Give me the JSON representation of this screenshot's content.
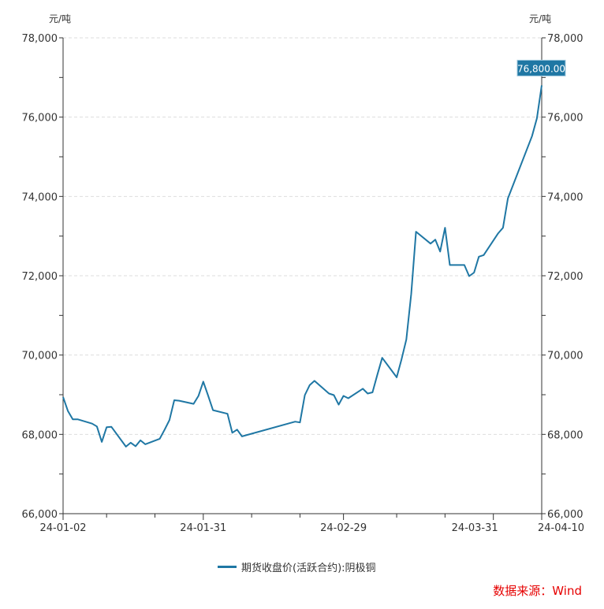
{
  "chart_data": {
    "type": "line",
    "left_unit": "元/吨",
    "right_unit": "元/吨",
    "ylim": [
      66000,
      78000
    ],
    "yticks": [
      "66,000",
      "68,000",
      "70,000",
      "72,000",
      "74,000",
      "76,000",
      "78,000"
    ],
    "yticks_values": [
      66000,
      68000,
      70000,
      72000,
      74000,
      76000,
      78000
    ],
    "xlim": [
      "2024-01-02",
      "2024-04-10"
    ],
    "xtick_labels": [
      {
        "date": "2024-01-02",
        "label": "24-01-02"
      },
      {
        "date": "2024-01-31",
        "label": "24-01-31"
      },
      {
        "date": "2024-02-29",
        "label": "24-02-29"
      },
      {
        "date": "2024-03-31",
        "label": "24-03-31"
      },
      {
        "date": "2024-04-10",
        "label": "24-04-10"
      }
    ],
    "x_minor_ticks": [
      "2024-01-11",
      "2024-01-21",
      "2024-02-10",
      "2024-02-20",
      "2024-03-11",
      "2024-03-21"
    ],
    "grid": "horizontal dashed",
    "legend_position": "bottom-center",
    "series": [
      {
        "name": "期货收盘价(活跃合约):阴极铜",
        "color": "#1f77a4",
        "last_value_label": "76,800.00",
        "points": [
          [
            "2024-01-02",
            68940
          ],
          [
            "2024-01-03",
            68590
          ],
          [
            "2024-01-04",
            68380
          ],
          [
            "2024-01-05",
            68380
          ],
          [
            "2024-01-08",
            68270
          ],
          [
            "2024-01-09",
            68200
          ],
          [
            "2024-01-10",
            67810
          ],
          [
            "2024-01-11",
            68180
          ],
          [
            "2024-01-12",
            68190
          ],
          [
            "2024-01-15",
            67690
          ],
          [
            "2024-01-16",
            67790
          ],
          [
            "2024-01-17",
            67700
          ],
          [
            "2024-01-18",
            67850
          ],
          [
            "2024-01-19",
            67750
          ],
          [
            "2024-01-22",
            67890
          ],
          [
            "2024-01-23",
            68120
          ],
          [
            "2024-01-24",
            68360
          ],
          [
            "2024-01-25",
            68860
          ],
          [
            "2024-01-26",
            68850
          ],
          [
            "2024-01-29",
            68770
          ],
          [
            "2024-01-30",
            68970
          ],
          [
            "2024-01-31",
            69330
          ],
          [
            "2024-02-01",
            68980
          ],
          [
            "2024-02-02",
            68610
          ],
          [
            "2024-02-05",
            68520
          ],
          [
            "2024-02-06",
            68040
          ],
          [
            "2024-02-07",
            68120
          ],
          [
            "2024-02-08",
            67950
          ],
          [
            "2024-02-19",
            68320
          ],
          [
            "2024-02-20",
            68300
          ],
          [
            "2024-02-21",
            68990
          ],
          [
            "2024-02-22",
            69240
          ],
          [
            "2024-02-23",
            69350
          ],
          [
            "2024-02-26",
            69030
          ],
          [
            "2024-02-27",
            68990
          ],
          [
            "2024-02-28",
            68750
          ],
          [
            "2024-02-29",
            68970
          ],
          [
            "2024-03-01",
            68910
          ],
          [
            "2024-03-04",
            69150
          ],
          [
            "2024-03-05",
            69030
          ],
          [
            "2024-03-06",
            69060
          ],
          [
            "2024-03-07",
            69500
          ],
          [
            "2024-03-08",
            69930
          ],
          [
            "2024-03-11",
            69440
          ],
          [
            "2024-03-12",
            69890
          ],
          [
            "2024-03-13",
            70390
          ],
          [
            "2024-03-14",
            71540
          ],
          [
            "2024-03-15",
            73110
          ],
          [
            "2024-03-18",
            72810
          ],
          [
            "2024-03-19",
            72910
          ],
          [
            "2024-03-20",
            72610
          ],
          [
            "2024-03-21",
            73210
          ],
          [
            "2024-03-22",
            72270
          ],
          [
            "2024-03-25",
            72270
          ],
          [
            "2024-03-26",
            71990
          ],
          [
            "2024-03-27",
            72080
          ],
          [
            "2024-03-28",
            72480
          ],
          [
            "2024-03-29",
            72520
          ],
          [
            "2024-04-01",
            73070
          ],
          [
            "2024-04-02",
            73210
          ],
          [
            "2024-04-03",
            73950
          ],
          [
            "2024-04-08",
            75520
          ],
          [
            "2024-04-09",
            75970
          ],
          [
            "2024-04-10",
            76800
          ]
        ]
      }
    ]
  },
  "source": "数据来源：Wind"
}
